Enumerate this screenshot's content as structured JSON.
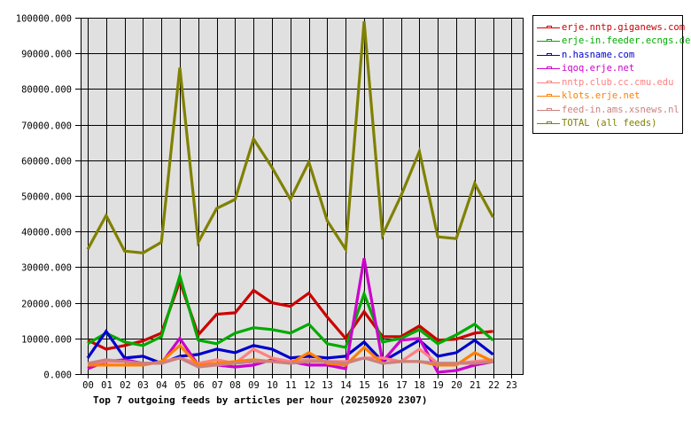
{
  "chart_data": {
    "type": "line",
    "title": "Top 7 outgoing feeds by articles per hour (20250920 2307)",
    "xlabel": "",
    "ylabel": "",
    "x": [
      "00",
      "01",
      "02",
      "03",
      "04",
      "05",
      "06",
      "07",
      "08",
      "09",
      "10",
      "11",
      "12",
      "13",
      "14",
      "15",
      "16",
      "17",
      "18",
      "19",
      "20",
      "21",
      "22",
      "23"
    ],
    "ylim": [
      0,
      100000
    ],
    "yticks": [
      "0.000",
      "10000.000",
      "20000.000",
      "30000.000",
      "40000.000",
      "50000.000",
      "60000.000",
      "70000.000",
      "80000.000",
      "90000.000",
      "100000.000"
    ],
    "grid": true,
    "legend_position": "right",
    "series": [
      {
        "name": "erje.nntp.giganews.com",
        "color": "#cc0000",
        "values": [
          9500,
          7000,
          8000,
          9300,
          11500,
          26000,
          11000,
          16800,
          17200,
          23500,
          20000,
          19000,
          22700,
          16000,
          10000,
          17500,
          10500,
          10500,
          13500,
          9500,
          9800,
          11500,
          12000
        ]
      },
      {
        "name": "erje-in.feeder.ecngs.de",
        "color": "#00aa00",
        "values": [
          8500,
          11500,
          9000,
          8000,
          10500,
          27500,
          9500,
          8500,
          11500,
          13000,
          12500,
          11500,
          14000,
          8500,
          7500,
          22500,
          9000,
          10000,
          12500,
          8500,
          11000,
          14000,
          9500
        ]
      },
      {
        "name": "n.hasname.com",
        "color": "#0000cc",
        "values": [
          4500,
          12000,
          4500,
          5000,
          3000,
          5000,
          5500,
          7000,
          6000,
          8000,
          7000,
          4500,
          5000,
          4500,
          5000,
          9000,
          3500,
          6500,
          9500,
          5000,
          6000,
          9500,
          5500
        ]
      },
      {
        "name": "iqoq.erje.net",
        "color": "#cc00cc",
        "values": [
          1500,
          3500,
          4000,
          3000,
          3000,
          10000,
          2500,
          2500,
          2000,
          2500,
          4000,
          3500,
          2500,
          2500,
          1500,
          32500,
          3500,
          9500,
          10000,
          500,
          1000,
          2500,
          3500
        ]
      },
      {
        "name": "nntp.club.cc.cmu.edu",
        "color": "#ff8080",
        "values": [
          3000,
          3500,
          3500,
          2500,
          3500,
          4500,
          3000,
          4000,
          3000,
          7000,
          4500,
          3500,
          4000,
          3500,
          3500,
          4500,
          4500,
          3500,
          7000,
          3000,
          3000,
          3500,
          4000
        ]
      },
      {
        "name": "klots.erje.net",
        "color": "#ff7f00",
        "values": [
          2500,
          2500,
          2500,
          2500,
          3500,
          8000,
          2500,
          3000,
          3500,
          4000,
          3500,
          3000,
          6000,
          3000,
          2500,
          7500,
          3000,
          3500,
          3500,
          2500,
          2500,
          6000,
          3500
        ]
      },
      {
        "name": "feed-in.ams.xsnews.nl",
        "color": "#cc8080",
        "values": [
          3000,
          4000,
          3500,
          3000,
          3000,
          4500,
          2000,
          2500,
          3000,
          3500,
          3500,
          3000,
          3500,
          3500,
          3000,
          4500,
          3000,
          3500,
          3500,
          3000,
          3000,
          3000,
          3500
        ]
      },
      {
        "name": "TOTAL (all feeds)",
        "color": "#808000",
        "values": [
          35000,
          44500,
          34500,
          34000,
          37000,
          86000,
          37000,
          46500,
          49000,
          66000,
          58000,
          49000,
          59500,
          43000,
          35000,
          99000,
          39000,
          50000,
          62500,
          38500,
          38000,
          53500,
          44000
        ]
      }
    ]
  },
  "legend": {
    "items": [
      {
        "label": "erje.nntp.giganews.com",
        "color": "#cc0000"
      },
      {
        "label": "erje-in.feeder.ecngs.de",
        "color": "#00aa00"
      },
      {
        "label": "n.hasname.com",
        "color": "#0000cc"
      },
      {
        "label": "iqoq.erje.net",
        "color": "#cc00cc"
      },
      {
        "label": "nntp.club.cc.cmu.edu",
        "color": "#ff8080"
      },
      {
        "label": "klots.erje.net",
        "color": "#ff7f00"
      },
      {
        "label": "feed-in.ams.xsnews.nl",
        "color": "#cc8080"
      },
      {
        "label": "TOTAL (all feeds)",
        "color": "#808000"
      }
    ]
  },
  "style": {
    "plot_background": "#e0e0e0",
    "grid_color": "#000000",
    "page_background": "#ffffff"
  }
}
